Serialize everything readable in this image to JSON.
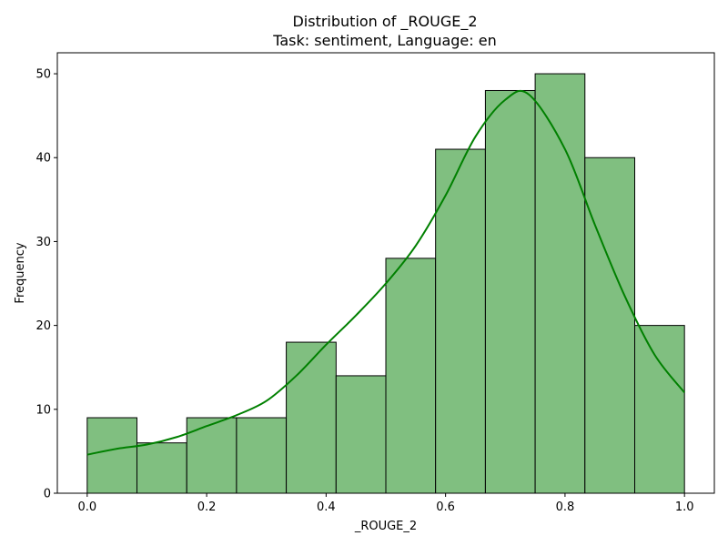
{
  "chart_data": {
    "type": "bar",
    "title": "Distribution of _ROUGE_2",
    "subtitle": "Task: sentiment, Language: en",
    "xlabel": "_ROUGE_2",
    "ylabel": "Frequency",
    "xlim": [
      -0.05,
      1.05
    ],
    "ylim": [
      0,
      52.5
    ],
    "x_ticks": [
      0.0,
      0.2,
      0.4,
      0.6,
      0.8,
      1.0
    ],
    "x_tick_labels": [
      "0.0",
      "0.2",
      "0.4",
      "0.6",
      "0.8",
      "1.0"
    ],
    "y_ticks": [
      0,
      10,
      20,
      30,
      40,
      50
    ],
    "y_tick_labels": [
      "0",
      "10",
      "20",
      "30",
      "40",
      "50"
    ],
    "bin_edges": [
      0.0,
      0.0833,
      0.1667,
      0.25,
      0.3333,
      0.4167,
      0.5,
      0.5833,
      0.6667,
      0.75,
      0.8333,
      0.9167,
      1.0
    ],
    "values": [
      9,
      6,
      9,
      9,
      18,
      14,
      28,
      41,
      48,
      50,
      40,
      20
    ],
    "kde": {
      "x": [
        0.0,
        0.05,
        0.1,
        0.15,
        0.2,
        0.25,
        0.3,
        0.35,
        0.4,
        0.45,
        0.5,
        0.55,
        0.6,
        0.65,
        0.7,
        0.74,
        0.8,
        0.85,
        0.9,
        0.95,
        1.0
      ],
      "y": [
        4.6,
        5.3,
        5.8,
        6.7,
        8.0,
        9.3,
        11.0,
        14.0,
        17.7,
        21.2,
        25.0,
        29.5,
        35.5,
        42.5,
        46.9,
        47.5,
        41.0,
        32.0,
        23.5,
        16.5,
        12.0
      ]
    },
    "bar_color": "#80bf80",
    "bar_edge_color": "#000000",
    "line_color": "#008000",
    "grid": false
  }
}
